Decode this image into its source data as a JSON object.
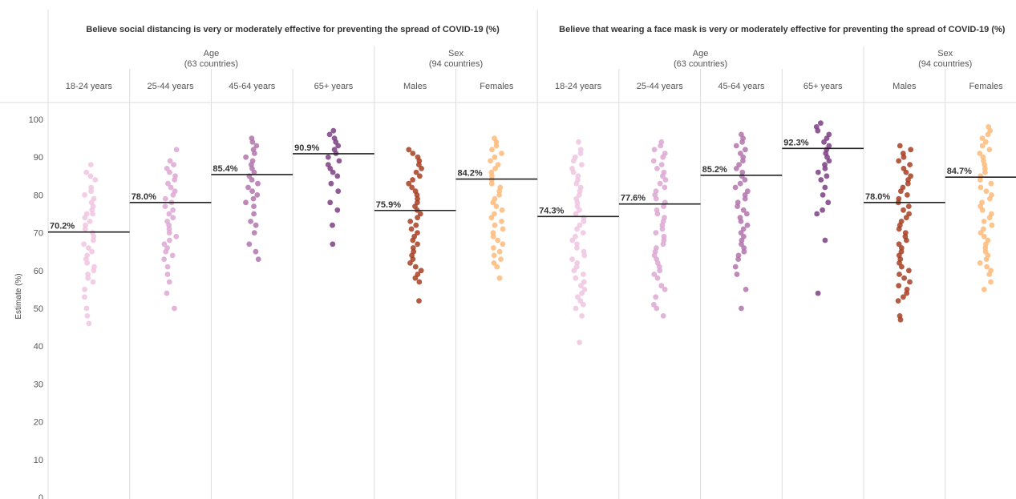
{
  "chart_data": {
    "type": "scatter",
    "ylabel": "Estimate (%)",
    "ylim": [
      0,
      100
    ],
    "yticks": [
      0,
      10,
      20,
      30,
      40,
      50,
      60,
      70,
      80,
      90,
      100
    ],
    "grid": false,
    "legend": "none",
    "panels": [
      {
        "title": "Believe social distancing is very or moderately effective for preventing the spread of COVID-19 (%)",
        "groups": [
          {
            "name": "Age",
            "subtitle": "(63 countries)",
            "categories": [
              {
                "label": "18-24 years",
                "mean": 70.2,
                "mean_label": "70.2%",
                "color": "#f0c4e2",
                "values": [
                  88,
                  86,
                  85,
                  84,
                  82,
                  81,
                  80,
                  79,
                  78,
                  77,
                  76,
                  75,
                  75,
                  74,
                  73,
                  72,
                  71,
                  70,
                  69,
                  68,
                  67,
                  66,
                  65,
                  64,
                  63,
                  62,
                  61,
                  60,
                  59,
                  58,
                  57,
                  55,
                  53,
                  50,
                  48,
                  46
                ]
              },
              {
                "label": "25-44 years",
                "mean": 78.0,
                "mean_label": "78.0%",
                "color": "#dda7d2",
                "values": [
                  92,
                  89,
                  88,
                  87,
                  86,
                  85,
                  84,
                  83,
                  82,
                  81,
                  80,
                  79,
                  78,
                  77,
                  76,
                  75,
                  74,
                  73,
                  72,
                  71,
                  70,
                  69,
                  68,
                  67,
                  66,
                  65,
                  64,
                  63,
                  61,
                  59,
                  57,
                  54,
                  50
                ]
              },
              {
                "label": "45-64 years",
                "mean": 85.4,
                "mean_label": "85.4%",
                "color": "#b174ac",
                "values": [
                  95,
                  94,
                  93,
                  92,
                  91,
                  90,
                  89,
                  88,
                  87,
                  86,
                  85,
                  84,
                  83,
                  82,
                  81,
                  80,
                  79,
                  78,
                  77,
                  75,
                  73,
                  72,
                  70,
                  67,
                  65,
                  63
                ]
              },
              {
                "label": "65+ years",
                "mean": 90.9,
                "mean_label": "90.9%",
                "color": "#7d3f82",
                "values": [
                  97,
                  96,
                  95,
                  94,
                  93,
                  92,
                  91,
                  90,
                  89,
                  88,
                  87,
                  86,
                  85,
                  83,
                  81,
                  78,
                  76,
                  72,
                  67
                ]
              }
            ]
          },
          {
            "name": "Sex",
            "subtitle": "(94 countries)",
            "categories": [
              {
                "label": "Males",
                "mean": 75.9,
                "mean_label": "75.9%",
                "color": "#a63e22",
                "values": [
                  92,
                  91,
                  90,
                  89,
                  88,
                  87,
                  86,
                  85,
                  84,
                  83,
                  82,
                  81,
                  80,
                  79,
                  78,
                  77,
                  76,
                  75,
                  74,
                  73,
                  72,
                  71,
                  70,
                  69,
                  68,
                  67,
                  66,
                  65,
                  64,
                  63,
                  62,
                  61,
                  60,
                  59,
                  58,
                  57,
                  52
                ]
              },
              {
                "label": "Females",
                "mean": 84.2,
                "mean_label": "84.2%",
                "color": "#fdbb79",
                "values": [
                  95,
                  94,
                  93,
                  92,
                  91,
                  90,
                  89,
                  88,
                  87,
                  86,
                  85,
                  84,
                  83,
                  82,
                  81,
                  80,
                  79,
                  78,
                  77,
                  76,
                  75,
                  74,
                  73,
                  72,
                  71,
                  70,
                  69,
                  68,
                  67,
                  66,
                  65,
                  64,
                  63,
                  62,
                  61,
                  58
                ]
              }
            ]
          }
        ]
      },
      {
        "title": "Believe that wearing a face mask is very or moderately effective for preventing the spread of COVID-19 (%)",
        "groups": [
          {
            "name": "Age",
            "subtitle": "(63 countries)",
            "categories": [
              {
                "label": "18-24 years",
                "mean": 74.3,
                "mean_label": "74.3%",
                "color": "#f0c4e2",
                "values": [
                  94,
                  92,
                  91,
                  90,
                  89,
                  88,
                  87,
                  86,
                  85,
                  84,
                  83,
                  82,
                  81,
                  80,
                  79,
                  78,
                  77,
                  76,
                  75,
                  74,
                  73,
                  72,
                  71,
                  70,
                  69,
                  68,
                  67,
                  66,
                  65,
                  64,
                  63,
                  62,
                  61,
                  60,
                  59,
                  58,
                  57,
                  56,
                  55,
                  54,
                  53,
                  52,
                  51,
                  50,
                  48,
                  41
                ]
              },
              {
                "label": "25-44 years",
                "mean": 77.6,
                "mean_label": "77.6%",
                "color": "#dda7d2",
                "values": [
                  94,
                  93,
                  92,
                  91,
                  90,
                  89,
                  88,
                  87,
                  86,
                  85,
                  84,
                  83,
                  82,
                  81,
                  80,
                  79,
                  78,
                  77,
                  76,
                  75,
                  74,
                  73,
                  72,
                  71,
                  70,
                  69,
                  68,
                  67,
                  66,
                  65,
                  64,
                  63,
                  62,
                  61,
                  60,
                  59,
                  58,
                  56,
                  55,
                  53,
                  51,
                  50,
                  48
                ]
              },
              {
                "label": "45-64 years",
                "mean": 85.2,
                "mean_label": "85.2%",
                "color": "#b174ac",
                "values": [
                  96,
                  95,
                  94,
                  93,
                  92,
                  91,
                  90,
                  89,
                  88,
                  87,
                  86,
                  85,
                  84,
                  83,
                  82,
                  81,
                  80,
                  79,
                  78,
                  77,
                  76,
                  75,
                  74,
                  73,
                  72,
                  71,
                  70,
                  69,
                  68,
                  67,
                  66,
                  65,
                  64,
                  63,
                  61,
                  59,
                  55,
                  50
                ]
              },
              {
                "label": "65+ years",
                "mean": 92.3,
                "mean_label": "92.3%",
                "color": "#7d3f82",
                "values": [
                  99,
                  98,
                  97,
                  96,
                  95,
                  94,
                  93,
                  92,
                  91,
                  90,
                  89,
                  88,
                  87,
                  86,
                  85,
                  84,
                  82,
                  80,
                  78,
                  76,
                  75,
                  68,
                  54
                ]
              }
            ]
          },
          {
            "name": "Sex",
            "subtitle": "(94 countries)",
            "categories": [
              {
                "label": "Males",
                "mean": 78.0,
                "mean_label": "78.0%",
                "color": "#a63e22",
                "values": [
                  93,
                  92,
                  91,
                  90,
                  89,
                  88,
                  87,
                  86,
                  85,
                  84,
                  83,
                  82,
                  81,
                  80,
                  79,
                  78,
                  77,
                  76,
                  75,
                  74,
                  73,
                  72,
                  71,
                  70,
                  69,
                  68,
                  67,
                  66,
                  65,
                  64,
                  63,
                  62,
                  61,
                  60,
                  59,
                  58,
                  57,
                  56,
                  55,
                  54,
                  53,
                  52,
                  48,
                  47
                ]
              },
              {
                "label": "Females",
                "mean": 84.7,
                "mean_label": "84.7%",
                "color": "#fdbb79",
                "values": [
                  98,
                  97,
                  96,
                  95,
                  94,
                  93,
                  92,
                  91,
                  90,
                  89,
                  88,
                  87,
                  86,
                  85,
                  84,
                  83,
                  82,
                  81,
                  80,
                  79,
                  78,
                  77,
                  76,
                  75,
                  74,
                  73,
                  72,
                  71,
                  70,
                  69,
                  68,
                  67,
                  66,
                  65,
                  64,
                  63,
                  62,
                  61,
                  60,
                  59,
                  57,
                  55
                ]
              }
            ]
          }
        ]
      }
    ]
  }
}
